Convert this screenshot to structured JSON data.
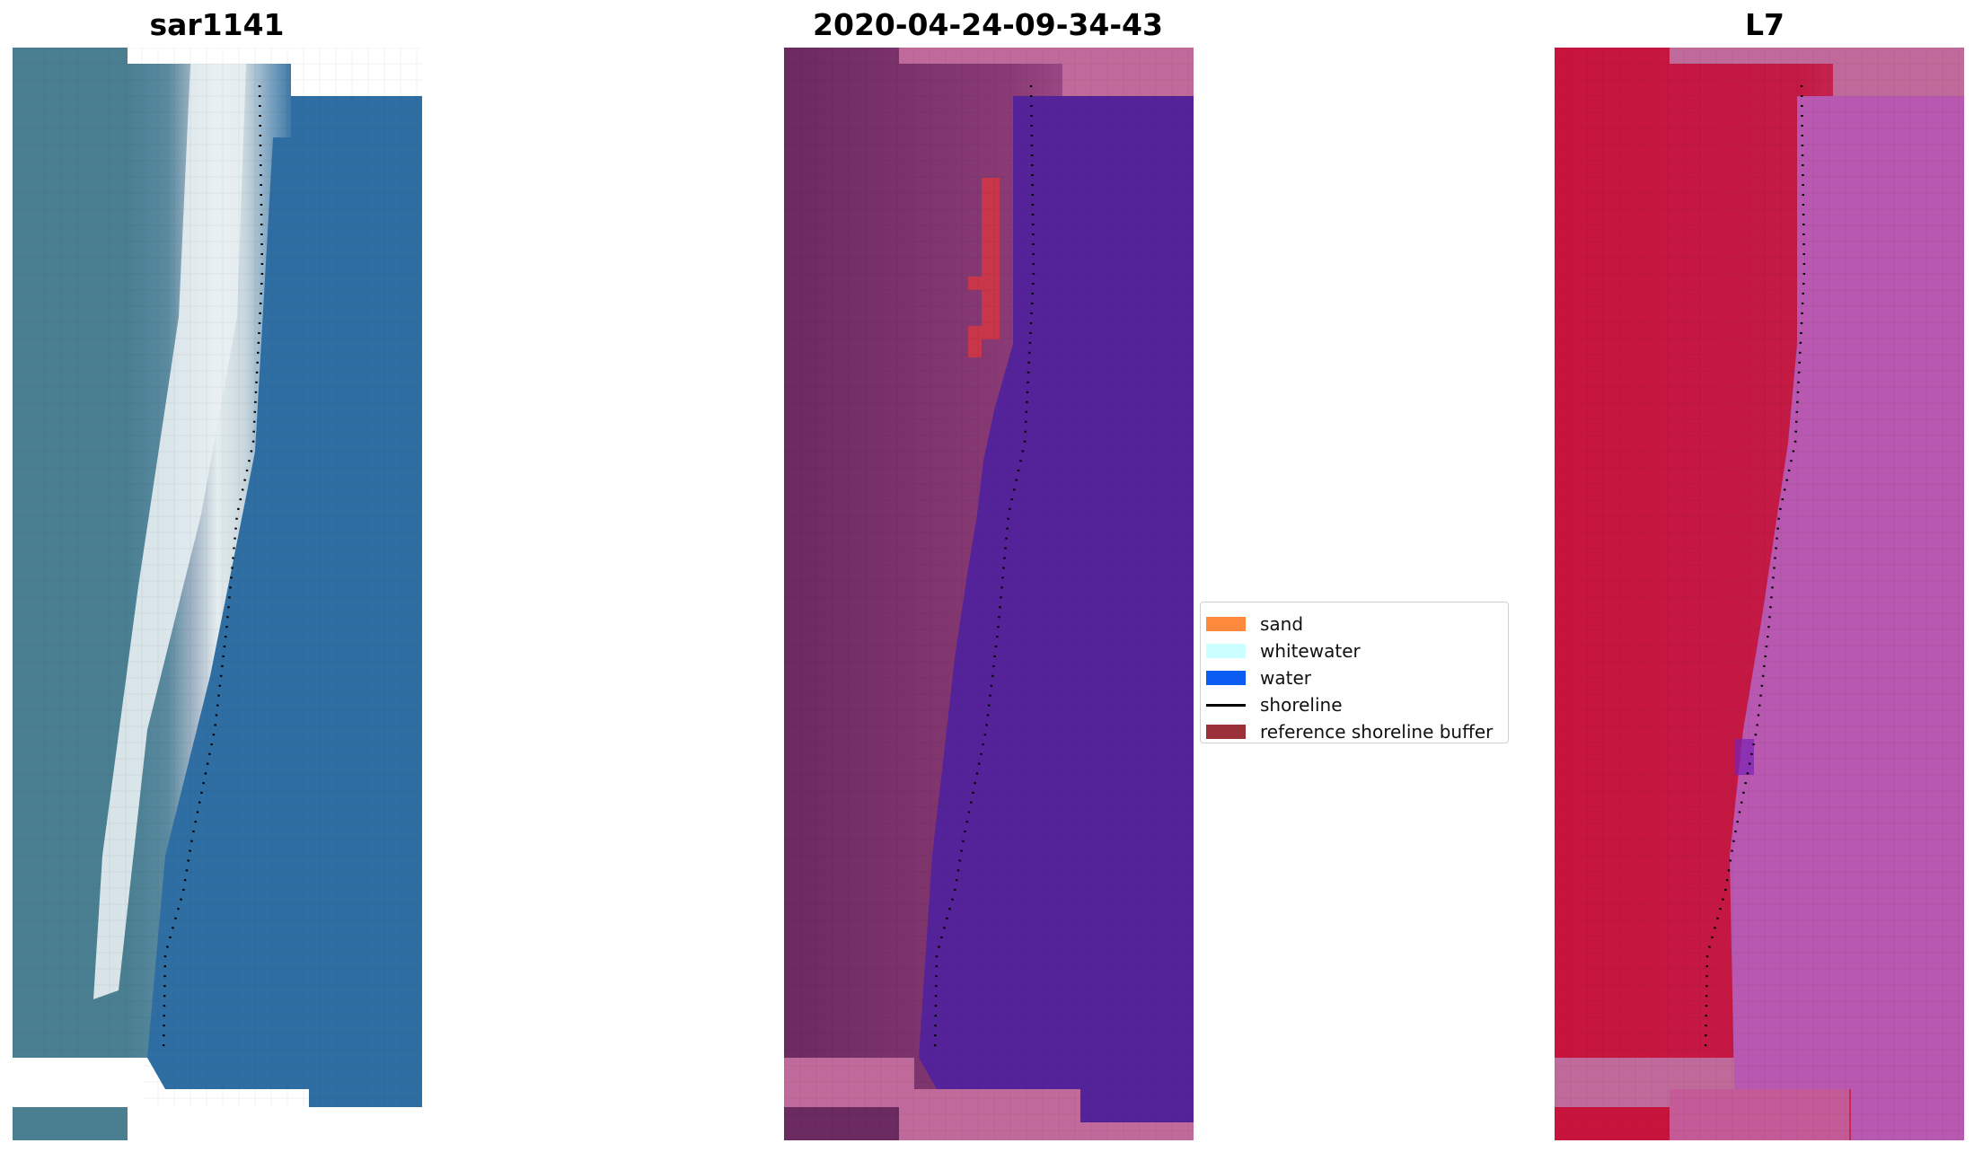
{
  "panels": [
    {
      "title": "sar1141"
    },
    {
      "title": "2020-04-24-09-34-43"
    },
    {
      "title": "L7"
    }
  ],
  "legend": {
    "items": [
      {
        "label": "sand",
        "color": "#ff8a3d",
        "kind": "patch"
      },
      {
        "label": "whitewater",
        "color": "#ccffff",
        "kind": "patch"
      },
      {
        "label": "water",
        "color": "#0b5cf0",
        "kind": "patch"
      },
      {
        "label": "shoreline",
        "color": "#000000",
        "kind": "line"
      },
      {
        "label": "reference shoreline buffer",
        "color": "#9b3038",
        "kind": "patch"
      }
    ]
  },
  "colors": {
    "rgb_water": "#2f6ea3",
    "rgb_land": "#4a7f92",
    "rgb_whitewater": "#e8f0f2",
    "class_land": "#6b2a60",
    "class_sand": "#c068a3",
    "class_water": "#54239a",
    "class_buffer": "#c8364a",
    "ndwi_land": "#c7143d",
    "ndwi_water": "#b858b0",
    "nodata_pink": "#bf6a9a"
  }
}
